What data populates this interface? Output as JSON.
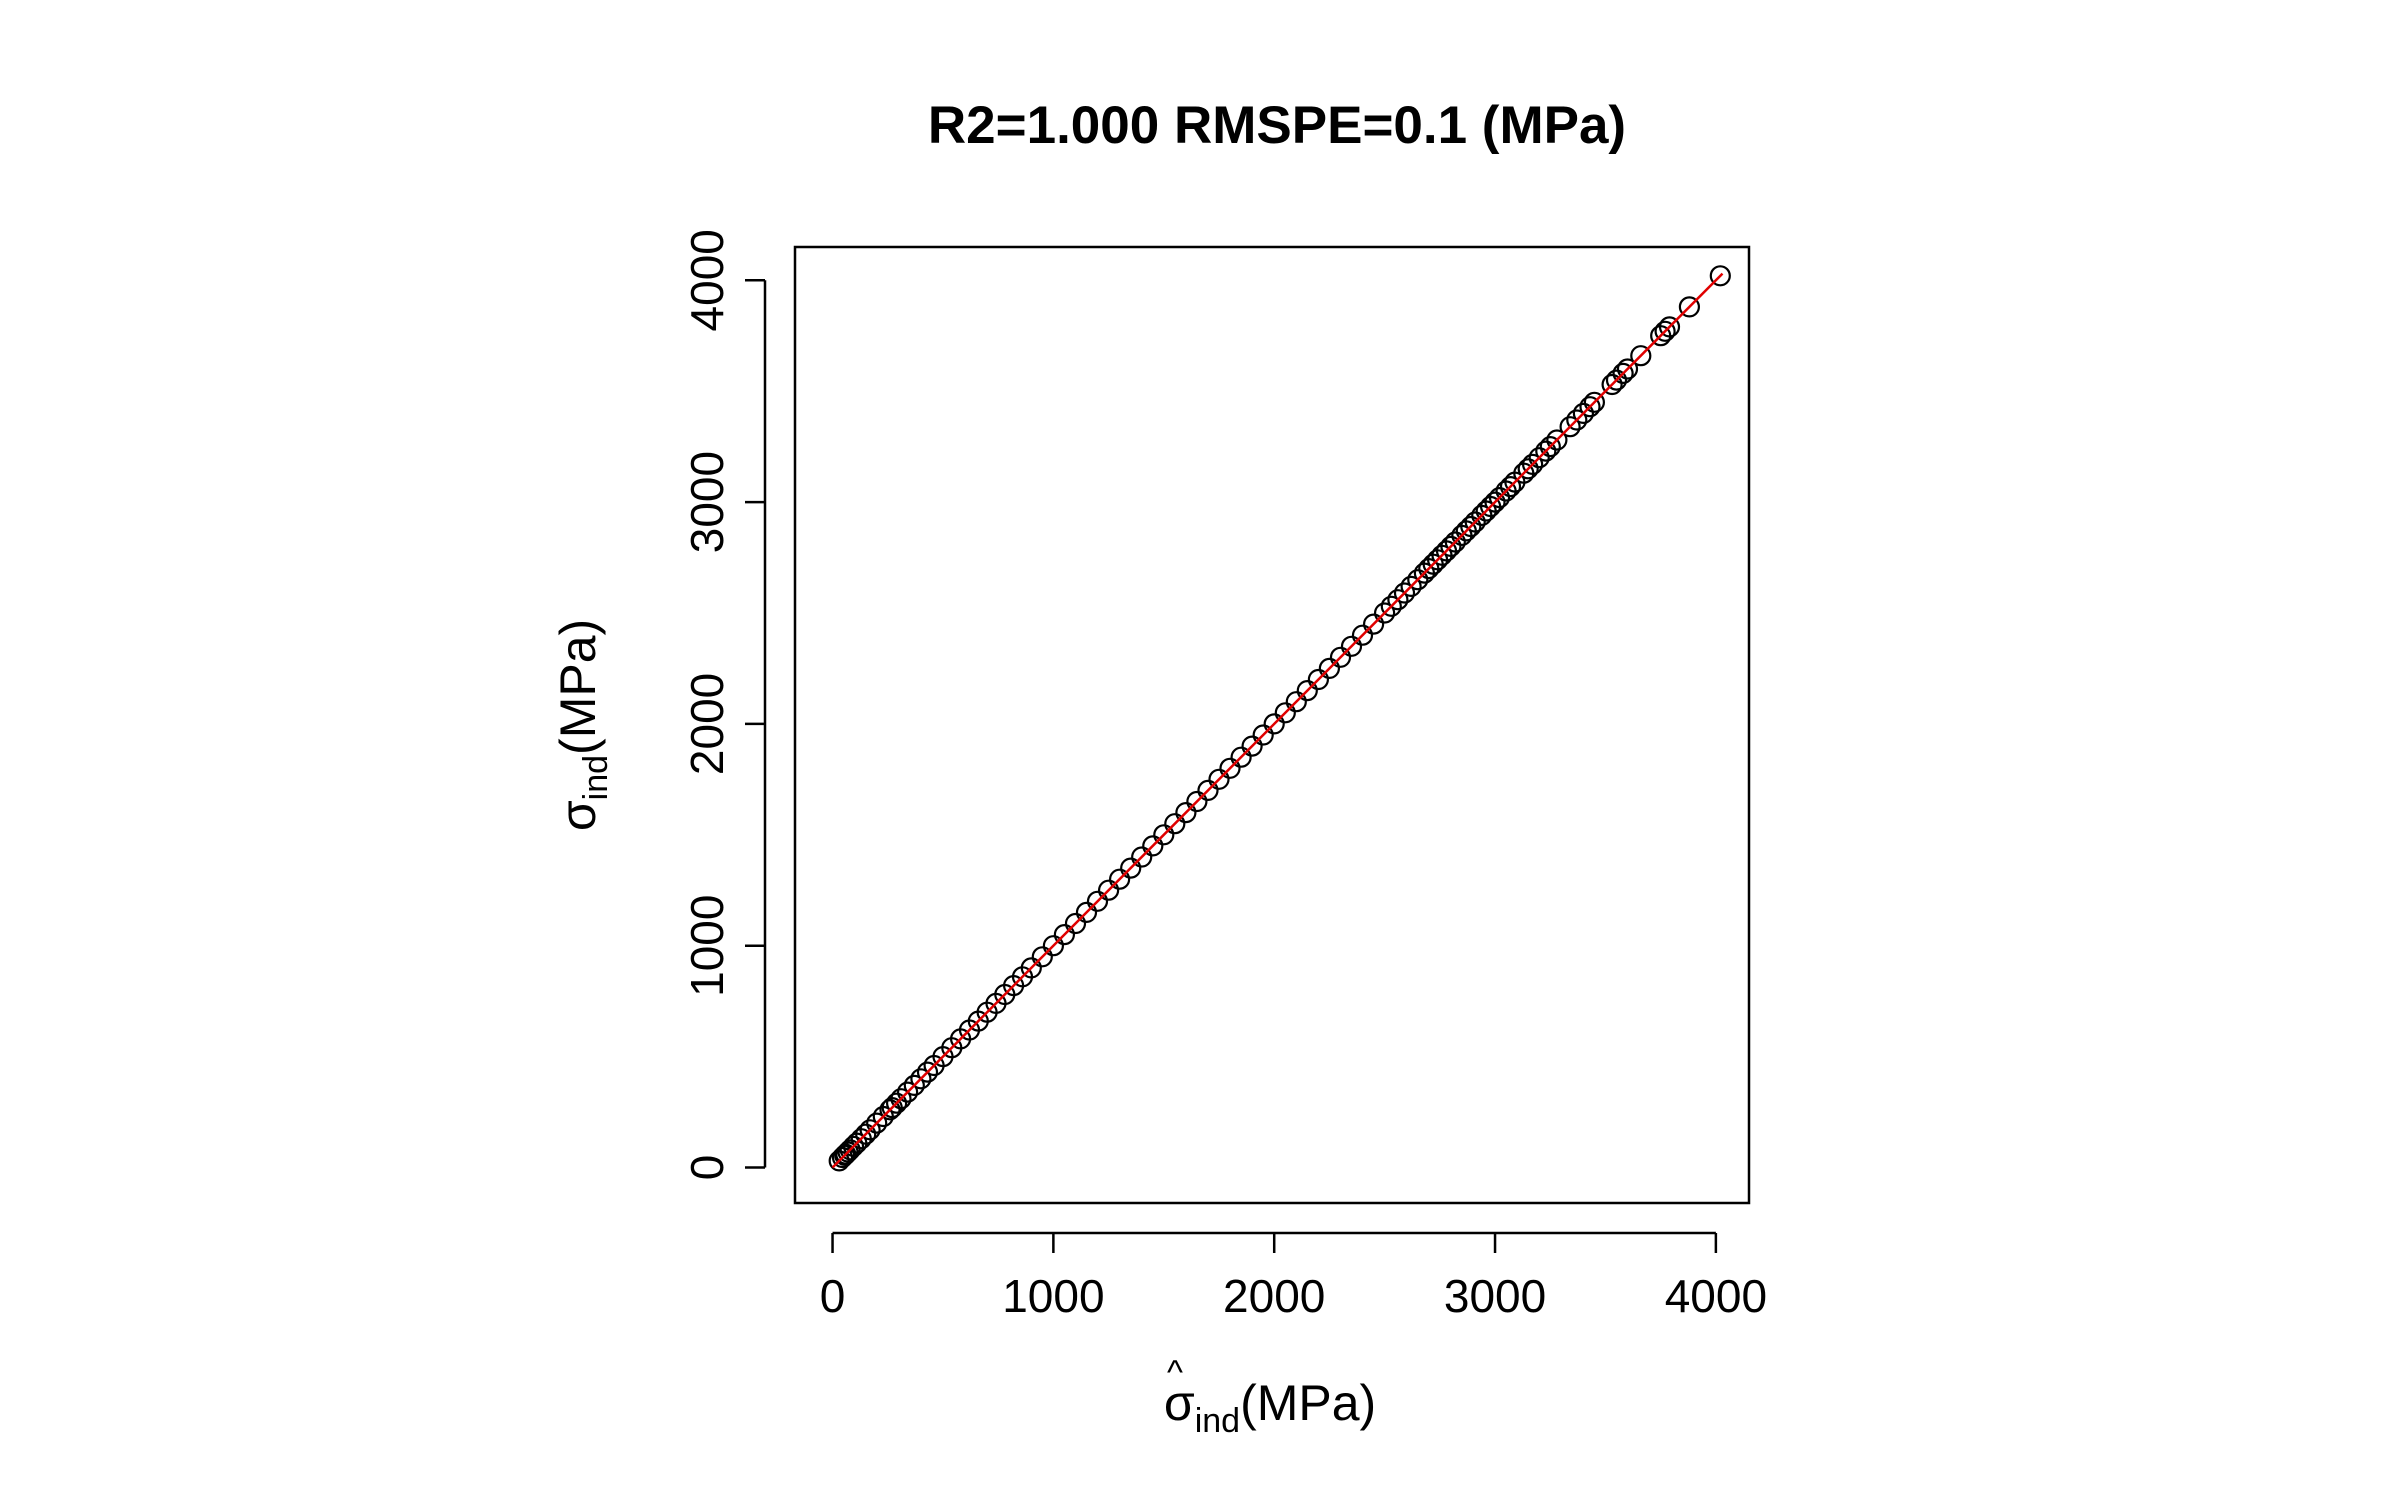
{
  "chart_data": {
    "type": "scatter",
    "title": "R2=1.000 RMSPE=0.1 (MPa)",
    "xlabel": {
      "hat": "^",
      "symbol": "σ",
      "subscript": "ind",
      "unit": "(MPa)"
    },
    "ylabel": {
      "symbol": "σ",
      "subscript": "ind",
      "unit": "(MPa)"
    },
    "xlim": [
      -170,
      4150
    ],
    "ylim": [
      -160,
      4150
    ],
    "x_ticks": [
      0,
      1000,
      2000,
      3000,
      4000
    ],
    "x_tick_labels": [
      "0",
      "1000",
      "2000",
      "3000",
      "4000"
    ],
    "y_ticks": [
      0,
      1000,
      2000,
      3000,
      4000
    ],
    "y_tick_labels": [
      "0",
      "1000",
      "2000",
      "3000",
      "4000"
    ],
    "grid": false,
    "legend": "none",
    "reference_line": {
      "type": "identity",
      "from": [
        0,
        0
      ],
      "to": [
        4030,
        4030
      ],
      "color": "#e00000"
    },
    "marker": {
      "shape": "open-circle",
      "color": "#000000"
    },
    "points": {
      "x": [
        30,
        45,
        55,
        60,
        70,
        80,
        95,
        110,
        130,
        150,
        170,
        200,
        230,
        260,
        270,
        290,
        310,
        340,
        370,
        400,
        430,
        460,
        500,
        540,
        580,
        620,
        660,
        700,
        740,
        780,
        820,
        860,
        900,
        950,
        1000,
        1050,
        1100,
        1150,
        1200,
        1250,
        1300,
        1350,
        1400,
        1450,
        1500,
        1550,
        1600,
        1650,
        1700,
        1750,
        1800,
        1850,
        1900,
        1950,
        2000,
        2050,
        2100,
        2150,
        2200,
        2250,
        2300,
        2350,
        2400,
        2450,
        2500,
        2530,
        2560,
        2590,
        2620,
        2650,
        2680,
        2700,
        2720,
        2740,
        2760,
        2780,
        2800,
        2820,
        2850,
        2870,
        2890,
        2910,
        2940,
        2960,
        2980,
        3000,
        3020,
        3050,
        3070,
        3090,
        3130,
        3150,
        3170,
        3200,
        3230,
        3250,
        3280,
        3340,
        3370,
        3400,
        3430,
        3450,
        3530,
        3550,
        3580,
        3600,
        3660,
        3750,
        3770,
        3790,
        3880,
        4020
      ],
      "y": [
        30,
        45,
        55,
        60,
        70,
        80,
        95,
        110,
        130,
        150,
        170,
        200,
        230,
        260,
        270,
        290,
        310,
        340,
        370,
        400,
        430,
        460,
        500,
        540,
        580,
        620,
        660,
        700,
        740,
        780,
        820,
        860,
        900,
        950,
        1000,
        1050,
        1100,
        1150,
        1200,
        1250,
        1300,
        1350,
        1400,
        1450,
        1500,
        1550,
        1600,
        1650,
        1700,
        1750,
        1800,
        1850,
        1900,
        1950,
        2000,
        2050,
        2100,
        2150,
        2200,
        2250,
        2300,
        2350,
        2400,
        2450,
        2500,
        2530,
        2560,
        2590,
        2620,
        2650,
        2680,
        2700,
        2720,
        2740,
        2760,
        2780,
        2800,
        2820,
        2850,
        2870,
        2890,
        2910,
        2940,
        2960,
        2980,
        3000,
        3020,
        3050,
        3070,
        3090,
        3130,
        3150,
        3170,
        3200,
        3230,
        3250,
        3280,
        3340,
        3370,
        3400,
        3430,
        3450,
        3530,
        3550,
        3580,
        3600,
        3660,
        3750,
        3770,
        3790,
        3880,
        4020
      ]
    }
  }
}
